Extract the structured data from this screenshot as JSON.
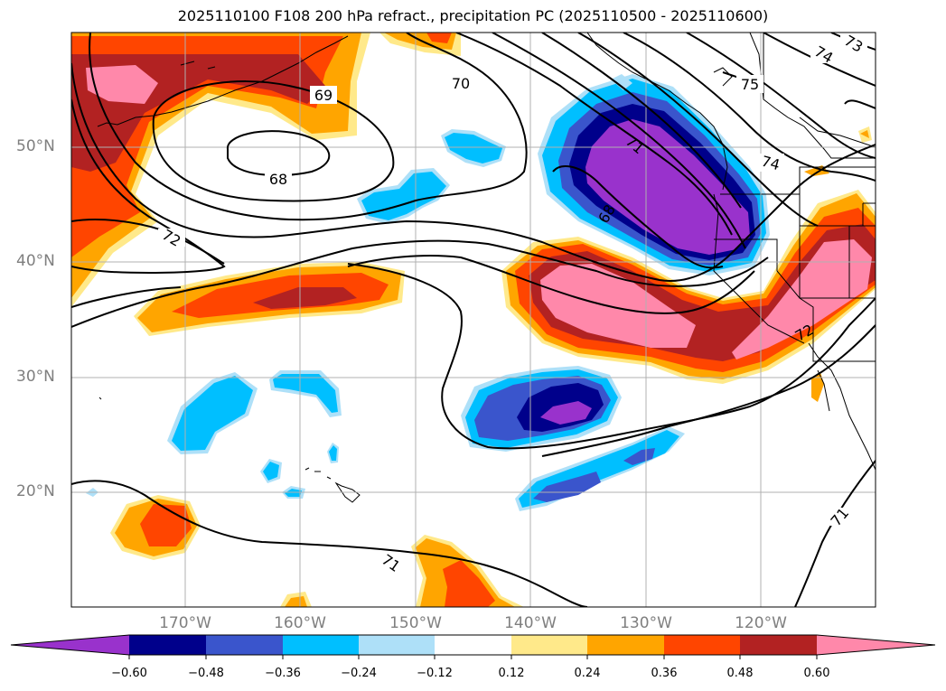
{
  "title": "2025110100 F108 200 hPa refract., precipitation PC (2025110500 - 2025110600)",
  "lat_labels": [
    "50°N",
    "40°N",
    "30°N",
    "20°N"
  ],
  "lon_labels": [
    "170°W",
    "160°W",
    "150°W",
    "140°W",
    "130°W",
    "120°W"
  ],
  "contour_labels": [
    "68",
    "69",
    "70",
    "71",
    "72",
    "73",
    "74",
    "75",
    "71",
    "71",
    "72",
    "74",
    "68"
  ],
  "colorbar": {
    "ticks": [
      "−0.60",
      "−0.48",
      "−0.36",
      "−0.24",
      "−0.12",
      "0.12",
      "0.24",
      "0.36",
      "0.48",
      "0.60"
    ],
    "colors": [
      "#9932cc",
      "#00008b",
      "#3a55cc",
      "#00bfff",
      "#aee0f8",
      "#ffffff",
      "#ffe98a",
      "#ffa500",
      "#ff4500",
      "#b22222",
      "#ff88aa"
    ]
  },
  "colors": {
    "purple": "#9932cc",
    "navy": "#00008b",
    "blue": "#3a55cc",
    "sky": "#00bfff",
    "lightblue": "#aee0f8",
    "lightyellow": "#ffe98a",
    "orange": "#ffa500",
    "orangered": "#ff4500",
    "firebrick": "#b22222",
    "pink": "#ff88aa",
    "grid": "#b0b0b0"
  }
}
